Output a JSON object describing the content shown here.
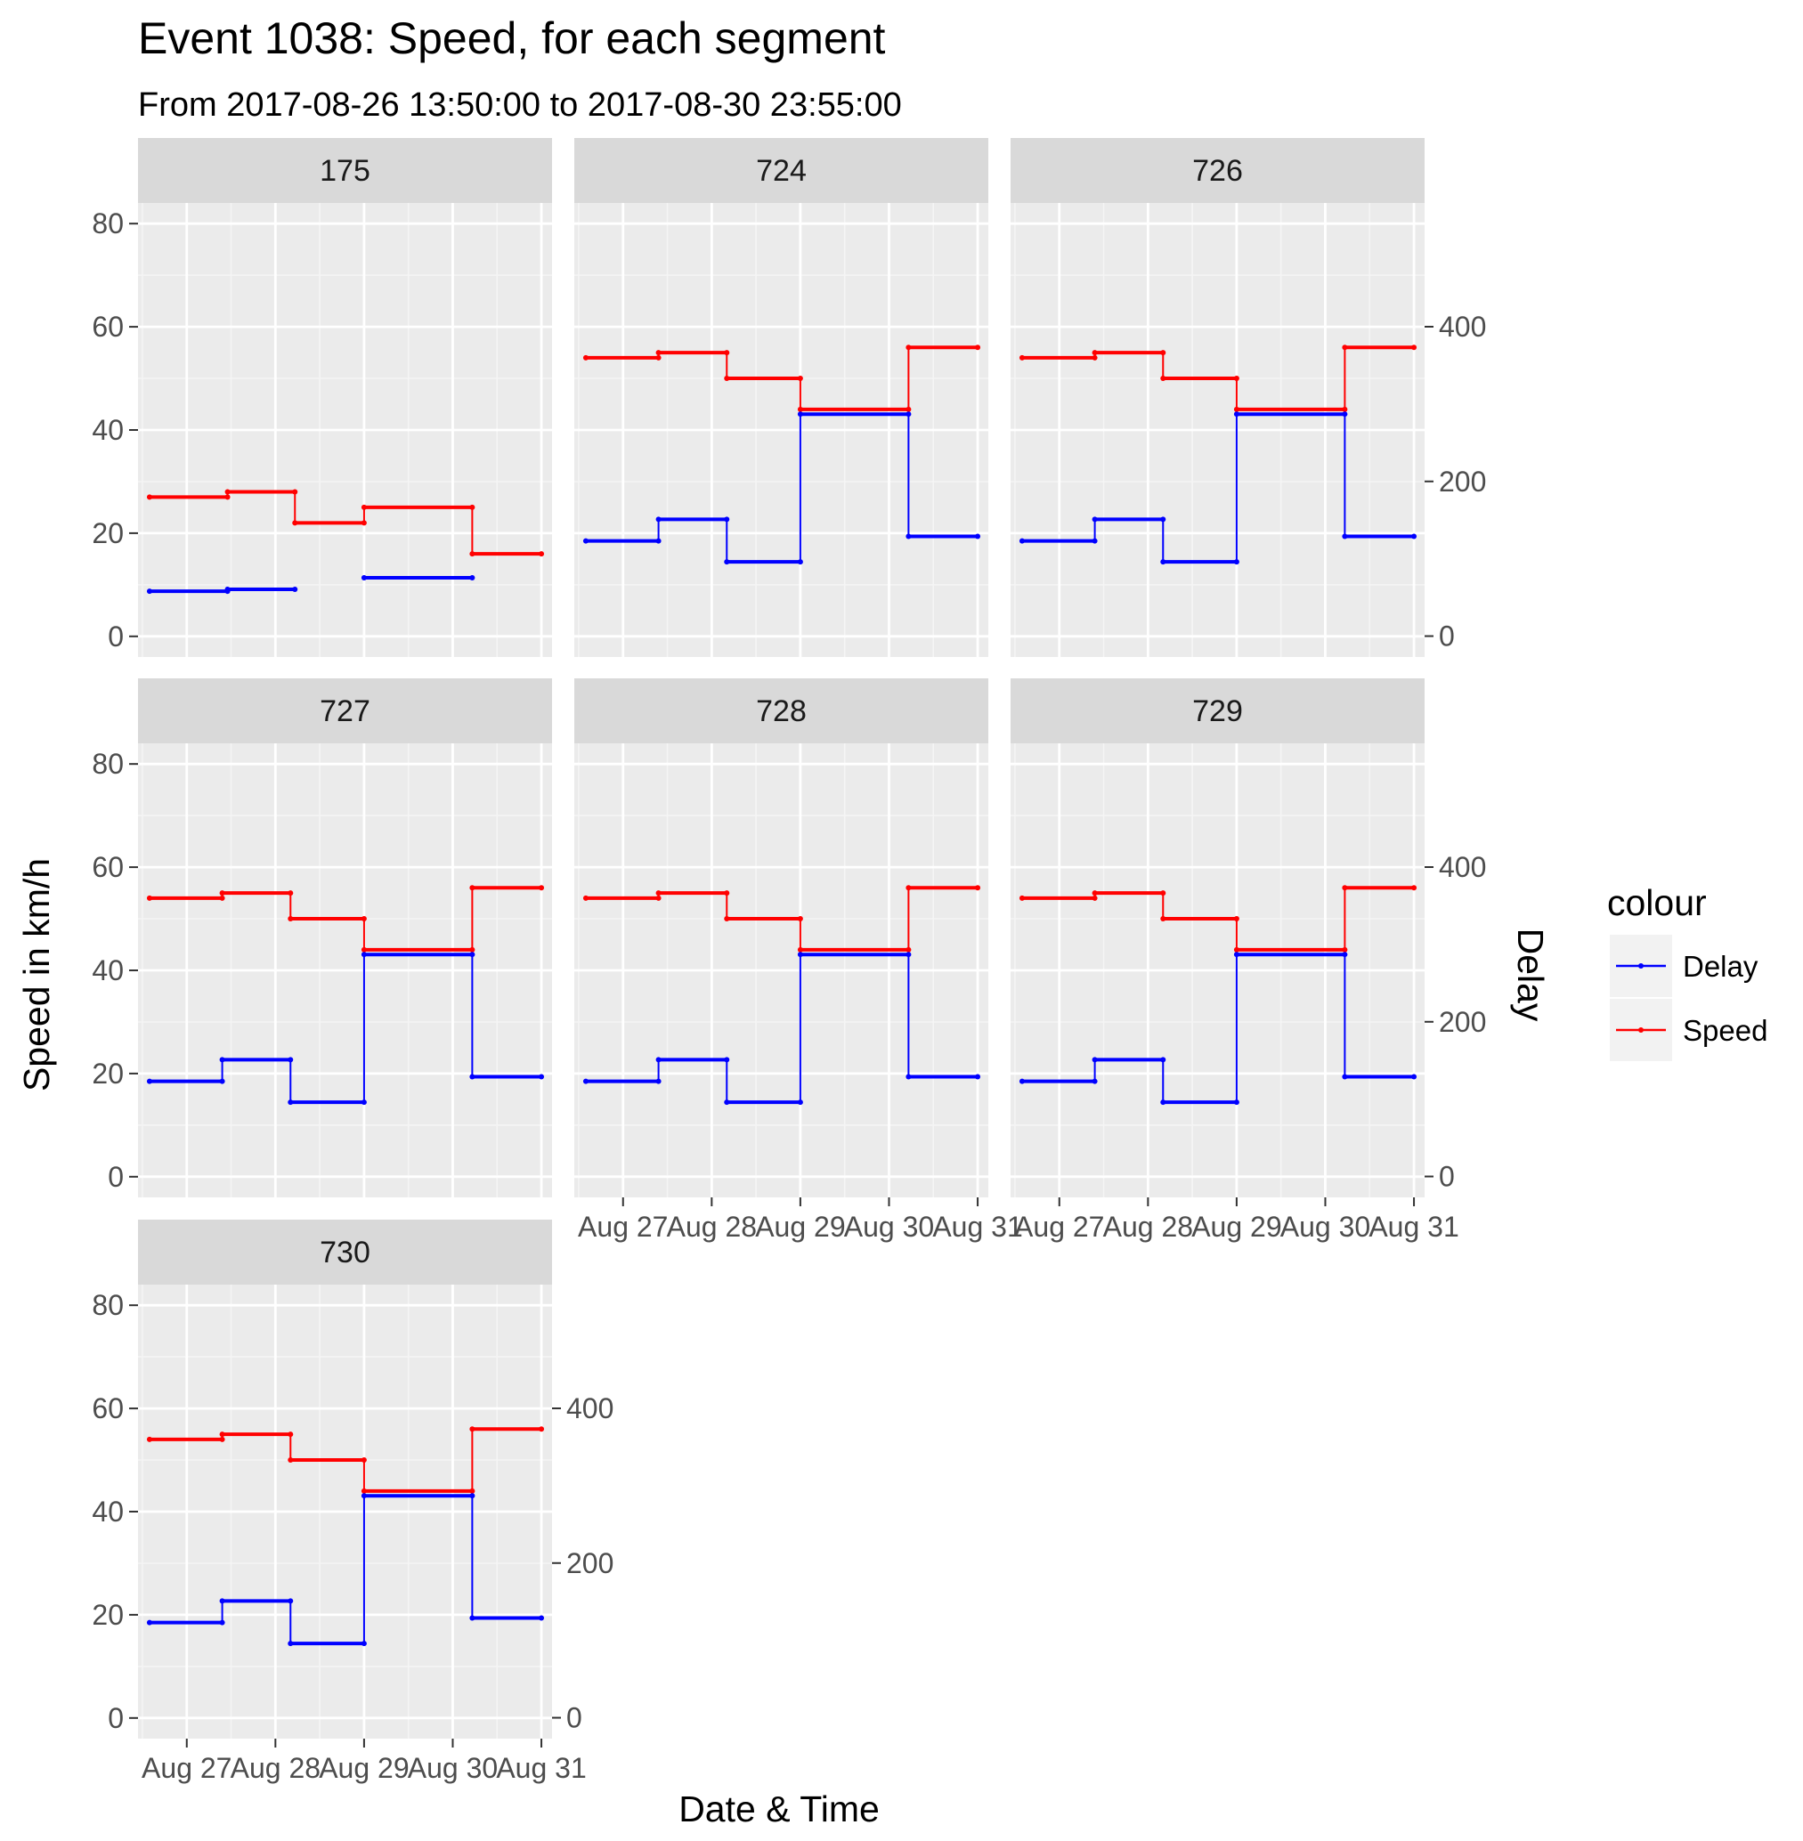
{
  "chart_data": {
    "type": "line",
    "title": "Event 1038: Speed, for each segment",
    "subtitle": "From 2017-08-26 13:50:00 to 2017-08-30 23:55:00",
    "xlabel": "Date & Time",
    "ylabel": "Speed in km/h",
    "y2label": "Delay",
    "x_ticks": [
      "Aug 27",
      "Aug 28",
      "Aug 29",
      "Aug 30",
      "Aug 31"
    ],
    "y_ticks": [
      0,
      20,
      40,
      60,
      80
    ],
    "y2_ticks": [
      0,
      200,
      400
    ],
    "ylim": [
      -4,
      84
    ],
    "y2lim": [
      -27,
      560
    ],
    "xlim_days": [
      26.45,
      31.12
    ],
    "grid": true,
    "colors": {
      "Delay": "#0000ff",
      "Speed": "#ff0000",
      "panel_bg": "#ebebeb",
      "strip_bg": "#d9d9d9"
    },
    "legend": {
      "title": "colour",
      "position": "right",
      "items": [
        {
          "label": "Delay",
          "color": "#0000ff"
        },
        {
          "label": "Speed",
          "color": "#ff0000"
        }
      ]
    },
    "panels": [
      {
        "label": "175",
        "series": [
          {
            "name": "Speed",
            "segments": [
              {
                "x0": 26.58,
                "x1": 27.46,
                "y": 27
              },
              {
                "x0": 27.46,
                "x1": 28.22,
                "y": 28
              },
              {
                "x0": 28.22,
                "x1": 29.0,
                "y": 22
              },
              {
                "x0": 29.0,
                "x1": 30.22,
                "y": 25
              },
              {
                "x0": 30.22,
                "x1": 31.0,
                "y": 16
              }
            ]
          },
          {
            "name": "Delay",
            "segments": [
              {
                "x0": 26.58,
                "x1": 27.46,
                "y": 58
              },
              {
                "x0": 27.46,
                "x1": 28.22,
                "y": 60.5
              },
              {
                "x0": 29.0,
                "x1": 30.22,
                "y": 75.5
              }
            ]
          }
        ]
      },
      {
        "label": "724",
        "series": [
          {
            "name": "Speed",
            "segments": [
              {
                "x0": 26.58,
                "x1": 27.4,
                "y": 54
              },
              {
                "x0": 27.4,
                "x1": 28.17,
                "y": 55
              },
              {
                "x0": 28.17,
                "x1": 29.0,
                "y": 50
              },
              {
                "x0": 29.0,
                "x1": 30.22,
                "y": 44
              },
              {
                "x0": 30.22,
                "x1": 31.0,
                "y": 56
              }
            ]
          },
          {
            "name": "Delay",
            "segments": [
              {
                "x0": 26.58,
                "x1": 27.4,
                "y": 123
              },
              {
                "x0": 27.4,
                "x1": 28.17,
                "y": 151
              },
              {
                "x0": 28.17,
                "x1": 29.0,
                "y": 96
              },
              {
                "x0": 29.0,
                "x1": 30.22,
                "y": 287
              },
              {
                "x0": 30.22,
                "x1": 31.0,
                "y": 129
              }
            ]
          }
        ]
      },
      {
        "label": "726",
        "series": [
          {
            "name": "Speed",
            "segments": [
              {
                "x0": 26.58,
                "x1": 27.4,
                "y": 54
              },
              {
                "x0": 27.4,
                "x1": 28.17,
                "y": 55
              },
              {
                "x0": 28.17,
                "x1": 29.0,
                "y": 50
              },
              {
                "x0": 29.0,
                "x1": 30.22,
                "y": 44
              },
              {
                "x0": 30.22,
                "x1": 31.0,
                "y": 56
              }
            ]
          },
          {
            "name": "Delay",
            "segments": [
              {
                "x0": 26.58,
                "x1": 27.4,
                "y": 123
              },
              {
                "x0": 27.4,
                "x1": 28.17,
                "y": 151
              },
              {
                "x0": 28.17,
                "x1": 29.0,
                "y": 96
              },
              {
                "x0": 29.0,
                "x1": 30.22,
                "y": 287
              },
              {
                "x0": 30.22,
                "x1": 31.0,
                "y": 129
              }
            ]
          }
        ]
      },
      {
        "label": "727",
        "series": [
          {
            "name": "Speed",
            "segments": [
              {
                "x0": 26.58,
                "x1": 27.4,
                "y": 54
              },
              {
                "x0": 27.4,
                "x1": 28.17,
                "y": 55
              },
              {
                "x0": 28.17,
                "x1": 29.0,
                "y": 50
              },
              {
                "x0": 29.0,
                "x1": 30.22,
                "y": 44
              },
              {
                "x0": 30.22,
                "x1": 31.0,
                "y": 56
              }
            ]
          },
          {
            "name": "Delay",
            "segments": [
              {
                "x0": 26.58,
                "x1": 27.4,
                "y": 123
              },
              {
                "x0": 27.4,
                "x1": 28.17,
                "y": 151
              },
              {
                "x0": 28.17,
                "x1": 29.0,
                "y": 96
              },
              {
                "x0": 29.0,
                "x1": 30.22,
                "y": 287
              },
              {
                "x0": 30.22,
                "x1": 31.0,
                "y": 129
              }
            ]
          }
        ]
      },
      {
        "label": "728",
        "series": [
          {
            "name": "Speed",
            "segments": [
              {
                "x0": 26.58,
                "x1": 27.4,
                "y": 54
              },
              {
                "x0": 27.4,
                "x1": 28.17,
                "y": 55
              },
              {
                "x0": 28.17,
                "x1": 29.0,
                "y": 50
              },
              {
                "x0": 29.0,
                "x1": 30.22,
                "y": 44
              },
              {
                "x0": 30.22,
                "x1": 31.0,
                "y": 56
              }
            ]
          },
          {
            "name": "Delay",
            "segments": [
              {
                "x0": 26.58,
                "x1": 27.4,
                "y": 123
              },
              {
                "x0": 27.4,
                "x1": 28.17,
                "y": 151
              },
              {
                "x0": 28.17,
                "x1": 29.0,
                "y": 96
              },
              {
                "x0": 29.0,
                "x1": 30.22,
                "y": 287
              },
              {
                "x0": 30.22,
                "x1": 31.0,
                "y": 129
              }
            ]
          }
        ]
      },
      {
        "label": "729",
        "series": [
          {
            "name": "Speed",
            "segments": [
              {
                "x0": 26.58,
                "x1": 27.4,
                "y": 54
              },
              {
                "x0": 27.4,
                "x1": 28.17,
                "y": 55
              },
              {
                "x0": 28.17,
                "x1": 29.0,
                "y": 50
              },
              {
                "x0": 29.0,
                "x1": 30.22,
                "y": 44
              },
              {
                "x0": 30.22,
                "x1": 31.0,
                "y": 56
              }
            ]
          },
          {
            "name": "Delay",
            "segments": [
              {
                "x0": 26.58,
                "x1": 27.4,
                "y": 123
              },
              {
                "x0": 27.4,
                "x1": 28.17,
                "y": 151
              },
              {
                "x0": 28.17,
                "x1": 29.0,
                "y": 96
              },
              {
                "x0": 29.0,
                "x1": 30.22,
                "y": 287
              },
              {
                "x0": 30.22,
                "x1": 31.0,
                "y": 129
              }
            ]
          }
        ]
      },
      {
        "label": "730",
        "series": [
          {
            "name": "Speed",
            "segments": [
              {
                "x0": 26.58,
                "x1": 27.4,
                "y": 54
              },
              {
                "x0": 27.4,
                "x1": 28.17,
                "y": 55
              },
              {
                "x0": 28.17,
                "x1": 29.0,
                "y": 50
              },
              {
                "x0": 29.0,
                "x1": 30.22,
                "y": 44
              },
              {
                "x0": 30.22,
                "x1": 31.0,
                "y": 56
              }
            ]
          },
          {
            "name": "Delay",
            "segments": [
              {
                "x0": 26.58,
                "x1": 27.4,
                "y": 123
              },
              {
                "x0": 27.4,
                "x1": 28.17,
                "y": 151
              },
              {
                "x0": 28.17,
                "x1": 29.0,
                "y": 96
              },
              {
                "x0": 29.0,
                "x1": 30.22,
                "y": 287
              },
              {
                "x0": 30.22,
                "x1": 31.0,
                "y": 129
              }
            ]
          }
        ]
      }
    ]
  }
}
